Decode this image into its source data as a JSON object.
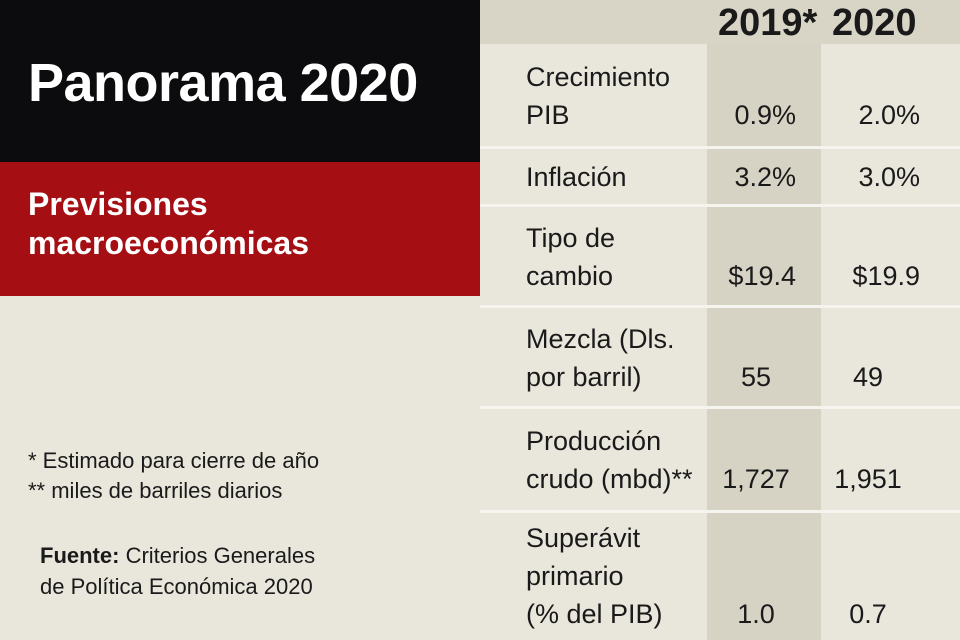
{
  "title": "Panorama 2020",
  "subtitle": [
    "Previsiones",
    "macroeconómicas"
  ],
  "notes": [
    "* Estimado para cierre de año",
    "** miles de barriles diarios"
  ],
  "source": {
    "label": "Fuente:",
    "text_line1": "Criterios Generales",
    "text_line2": "de Política Económica 2020"
  },
  "colors": {
    "title_bg": "#0c0c0e",
    "subtitle_bg": "#a50f14",
    "background": "#e9e6dc",
    "column_band": "#d6d2c4"
  },
  "chart_data": {
    "type": "table",
    "columns": [
      "2019*",
      "2020"
    ],
    "rows": [
      {
        "label": [
          "Crecimiento",
          "PIB"
        ],
        "values": [
          "0.9%",
          "2.0%"
        ]
      },
      {
        "label": [
          "Inflación"
        ],
        "values": [
          "3.2%",
          "3.0%"
        ]
      },
      {
        "label": [
          "Tipo de",
          "cambio"
        ],
        "values": [
          "$19.4",
          "$19.9"
        ]
      },
      {
        "label": [
          "Mezcla (Dls.",
          "por barril)"
        ],
        "values": [
          "55",
          "49"
        ]
      },
      {
        "label": [
          "Producción",
          "crudo (mbd)**"
        ],
        "values": [
          "1,727",
          "1,951"
        ]
      },
      {
        "label": [
          "Superávit",
          "primario",
          "(% del PIB)"
        ],
        "values": [
          "1.0",
          "0.7"
        ]
      }
    ]
  }
}
